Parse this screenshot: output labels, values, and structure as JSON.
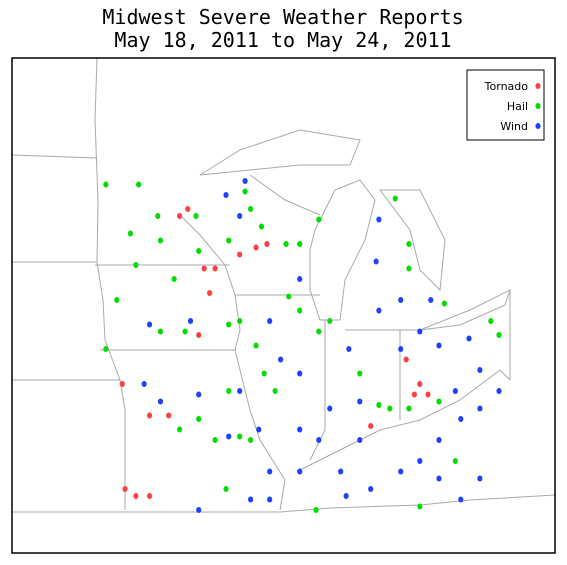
{
  "chart_data": {
    "type": "scatter",
    "title": "Midwest Severe Weather Reports",
    "subtitle": "May 18, 2011 to May 24, 2011",
    "legend": "upper right",
    "series": [
      {
        "name": "Tornado",
        "color": "#ff4040",
        "x": [
          -92.6,
          -92.3,
          -91.7,
          -91.3,
          -90.4,
          -89.8,
          -89.4,
          -91.5,
          -91.9,
          -94.7,
          -93.7,
          -93.0,
          -94.6,
          -94.2,
          -93.7,
          -84.3,
          -83.8,
          -85.6,
          -84.0,
          -83.5
        ],
        "values": [
          44.9,
          45.1,
          43.4,
          43.4,
          43.8,
          44.0,
          44.1,
          42.7,
          41.5,
          40.1,
          39.2,
          39.2,
          37.1,
          36.9,
          36.9,
          40.8,
          40.1,
          38.9,
          39.8,
          39.8
        ]
      },
      {
        "name": "Hail",
        "color": "#00dd00",
        "x": [
          -95.3,
          -94.1,
          -93.4,
          -92.0,
          -90.2,
          -90.0,
          -89.6,
          -88.7,
          -88.2,
          -87.5,
          -90.8,
          -91.9,
          -94.2,
          -92.8,
          -94.9,
          -95.3,
          -93.3,
          -92.4,
          -90.8,
          -90.4,
          -88.6,
          -88.2,
          -87.5,
          -89.8,
          -89.5,
          -89.1,
          -90.8,
          -91.9,
          -92.6,
          -91.3,
          -90.4,
          -90.0,
          -87.1,
          -86.0,
          -85.3,
          -84.9,
          -84.2,
          -83.1,
          -84.7,
          -84.2,
          -84.2,
          -82.9,
          -81.2,
          -80.9,
          -82.5,
          -87.6,
          -83.8,
          -90.9,
          -93.3,
          -94.4
        ],
        "values": [
          45.8,
          45.8,
          44.9,
          44.9,
          45.6,
          45.1,
          44.6,
          44.1,
          44.1,
          44.8,
          44.2,
          43.9,
          43.5,
          43.1,
          42.5,
          41.1,
          41.6,
          41.6,
          41.8,
          41.9,
          42.6,
          42.2,
          41.6,
          41.2,
          40.4,
          39.9,
          39.9,
          39.1,
          38.8,
          38.5,
          38.6,
          38.5,
          41.9,
          40.4,
          39.5,
          39.4,
          39.4,
          39.6,
          45.4,
          44.1,
          43.4,
          42.4,
          41.9,
          41.5,
          37.9,
          36.5,
          36.6,
          37.1,
          44.2,
          44.4
        ]
      },
      {
        "name": "Wind",
        "color": "#2040ff",
        "x": [
          -90.9,
          -90.2,
          -90.4,
          -88.2,
          -89.3,
          -93.7,
          -92.2,
          -93.9,
          -93.3,
          -91.9,
          -90.4,
          -88.9,
          -88.2,
          -87.5,
          -86.4,
          -85.3,
          -84.5,
          -83.4,
          -83.1,
          -82.0,
          -81.6,
          -80.9,
          -82.3,
          -83.1,
          -83.8,
          -84.5,
          -86.0,
          -86.7,
          -88.2,
          -89.3,
          -90.0,
          -91.9,
          -85.6,
          -83.1,
          -82.3,
          -81.6,
          -85.3,
          -85.4,
          -89.7,
          -90.8,
          -86.0,
          -87.1,
          -84.5,
          -83.8,
          -81.6,
          -82.5,
          -86.5,
          -89.3,
          -88.2
        ],
        "values": [
          45.5,
          45.9,
          44.9,
          43.1,
          41.9,
          41.8,
          41.9,
          40.1,
          39.6,
          39.8,
          39.9,
          40.8,
          38.8,
          38.5,
          41.1,
          42.2,
          42.5,
          42.5,
          41.2,
          41.4,
          40.5,
          39.9,
          39.1,
          38.5,
          37.9,
          37.6,
          38.5,
          37.6,
          37.6,
          37.6,
          36.8,
          36.5,
          37.1,
          37.4,
          36.8,
          37.4,
          44.8,
          43.6,
          38.8,
          38.6,
          39.6,
          39.4,
          41.1,
          41.6,
          39.4,
          39.9,
          36.9,
          36.8,
          40.4
        ]
      }
    ]
  }
}
